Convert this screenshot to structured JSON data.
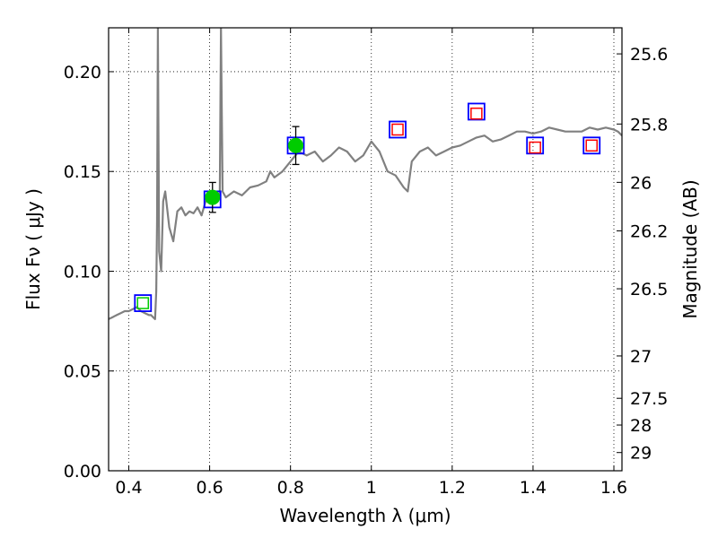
{
  "chart_data": {
    "type": "scatter",
    "xlabel": "Wavelength  λ (μm)",
    "ylabel": "Flux  Fν  ( μJy )",
    "y2label": "Magnitude (AB)",
    "xlim": [
      0.35,
      1.62
    ],
    "ylim": [
      0.0,
      0.222
    ],
    "grid": "dotted",
    "x_ticks": [
      0.4,
      0.6,
      0.8,
      1.0,
      1.2,
      1.4,
      1.6
    ],
    "x_tick_labels": [
      "0.4",
      "0.6",
      "0.8",
      "1",
      "1.2",
      "1.4",
      "1.6"
    ],
    "y_ticks": [
      0.0,
      0.05,
      0.1,
      0.15,
      0.2
    ],
    "y_tick_labels": [
      "0.00",
      "0.05",
      "0.10",
      "0.15",
      "0.20"
    ],
    "mag_ticks": [
      25.6,
      25.8,
      26,
      26.2,
      26.5,
      27,
      27.5,
      28,
      29
    ],
    "mag_tick_labels": [
      "25.6",
      "25.8",
      "26",
      "26.2",
      "26.5",
      "27",
      "27.5",
      "28",
      "29"
    ],
    "series": [
      {
        "kind": "model_spectrum",
        "color": "#808080",
        "x": [
          0.35,
          0.36,
          0.37,
          0.38,
          0.39,
          0.4,
          0.41,
          0.42,
          0.43,
          0.44,
          0.45,
          0.455,
          0.46,
          0.465,
          0.468,
          0.47,
          0.472,
          0.475,
          0.48,
          0.485,
          0.49,
          0.5,
          0.51,
          0.52,
          0.53,
          0.54,
          0.55,
          0.56,
          0.57,
          0.58,
          0.59,
          0.6,
          0.61,
          0.62,
          0.625,
          0.628,
          0.632,
          0.64,
          0.66,
          0.68,
          0.7,
          0.72,
          0.74,
          0.75,
          0.76,
          0.78,
          0.8,
          0.82,
          0.84,
          0.86,
          0.88,
          0.9,
          0.92,
          0.94,
          0.96,
          0.98,
          1.0,
          1.02,
          1.04,
          1.06,
          1.08,
          1.09,
          1.1,
          1.12,
          1.14,
          1.16,
          1.18,
          1.2,
          1.22,
          1.24,
          1.26,
          1.28,
          1.3,
          1.32,
          1.34,
          1.36,
          1.38,
          1.4,
          1.42,
          1.44,
          1.46,
          1.48,
          1.5,
          1.52,
          1.54,
          1.56,
          1.58,
          1.6,
          1.61,
          1.62
        ],
        "y": [
          0.076,
          0.077,
          0.078,
          0.079,
          0.08,
          0.08,
          0.081,
          0.082,
          0.08,
          0.079,
          0.078,
          0.078,
          0.077,
          0.076,
          0.09,
          0.125,
          0.222,
          0.11,
          0.1,
          0.135,
          0.14,
          0.122,
          0.115,
          0.13,
          0.132,
          0.128,
          0.13,
          0.129,
          0.132,
          0.128,
          0.135,
          0.136,
          0.137,
          0.135,
          0.14,
          0.222,
          0.14,
          0.137,
          0.14,
          0.138,
          0.142,
          0.143,
          0.145,
          0.15,
          0.147,
          0.15,
          0.155,
          0.16,
          0.158,
          0.16,
          0.155,
          0.158,
          0.162,
          0.16,
          0.155,
          0.158,
          0.165,
          0.16,
          0.15,
          0.148,
          0.142,
          0.14,
          0.155,
          0.16,
          0.162,
          0.158,
          0.16,
          0.162,
          0.163,
          0.165,
          0.167,
          0.168,
          0.165,
          0.166,
          0.168,
          0.17,
          0.17,
          0.169,
          0.17,
          0.172,
          0.171,
          0.17,
          0.17,
          0.17,
          0.172,
          0.171,
          0.172,
          0.171,
          0.17,
          0.168
        ]
      },
      {
        "kind": "model_band_fluxes",
        "edge_color": "#0000ff",
        "x": [
          0.435,
          0.607,
          0.813,
          1.065,
          1.26,
          1.405,
          1.545
        ],
        "y": [
          0.084,
          0.136,
          0.163,
          0.171,
          0.18,
          0.163,
          0.163
        ]
      },
      {
        "kind": "observed_detections",
        "color": "#00cc00",
        "x": [
          0.435,
          0.607,
          0.813
        ],
        "y": [
          0.084,
          0.137,
          0.163
        ],
        "yerr": [
          0.0,
          0.0075,
          0.0095
        ]
      },
      {
        "kind": "observed_upper_limits",
        "edge_color": "#ff0000",
        "x": [
          1.065,
          1.26,
          1.405,
          1.545
        ],
        "y": [
          0.171,
          0.179,
          0.162,
          0.163
        ]
      }
    ]
  }
}
